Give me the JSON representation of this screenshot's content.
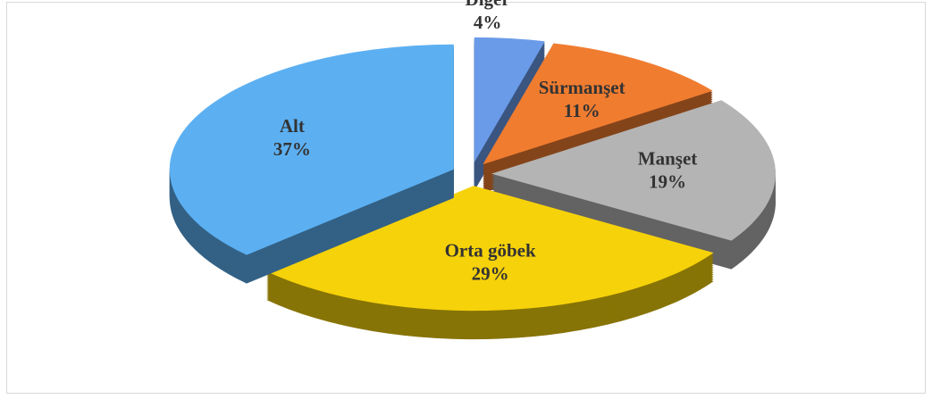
{
  "chart_data": {
    "type": "pie",
    "categories": [
      "Diğer",
      "Sürmanşet",
      "Manşet",
      "Orta göbek",
      "Alt"
    ],
    "values": [
      4,
      11,
      19,
      29,
      37
    ],
    "value_labels": [
      "4%",
      "11%",
      "19%",
      "29%",
      "37%"
    ],
    "colors": [
      "#6a9be8",
      "#f07c30",
      "#b4b4b4",
      "#f6d20a",
      "#5cb0f2"
    ]
  }
}
